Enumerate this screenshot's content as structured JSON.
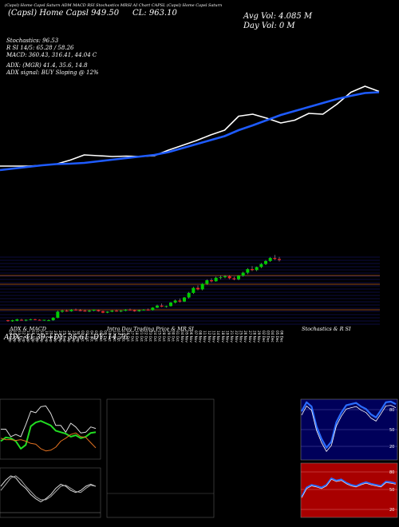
{
  "header": {
    "name": "(Capsl) Home Capsl Saturn ADM MACD RSI Stochastics MRSI AI Chart CAPSL (Capsl) Home Capsl Saturn",
    "price": "(Capsl) Home Capsl 949.50",
    "close": "CL: 963.10",
    "avg_volume": "Avg Vol: 4.085 M",
    "day_volume": "Day Vol: 0  M"
  },
  "indicators": {
    "stochastics": "Stochastics: 96.53",
    "rsi": "R         SI 14/5: 65.28  /  58.26",
    "macd": "MACD: 360.43,  316.41,  44.04  C",
    "adx": "ADX:                     (MGR) 41.4,  35.6,  14.8",
    "adx_signal": "ADX  signal:                        BUY Sloping @ 12%"
  },
  "panels": {
    "adx_title": "ADX  & MACD",
    "adx_values": "ADX: 41.39 +DY: 35.61 -DY: 14.76",
    "intraday_title": "Intra Day Trading Price  & MR                    SI",
    "stoch_title": "Stochastics & R                    SI"
  },
  "colors": {
    "price_line": "#ffffff",
    "moving_average": "#1e5bff",
    "candle_up": "#00cc00",
    "candle_down": "#ee2222",
    "grid": "#1a1a80",
    "sr_line": "#c06020",
    "rsi_panel_bg": "#a80000",
    "stoch_line": "#2a6cff"
  },
  "chart_data": [
    {
      "type": "line",
      "title": "",
      "series": [
        {
          "values": [
            20,
            20,
            20,
            22,
            25,
            35,
            48,
            46,
            44,
            45,
            44,
            46,
            60,
            72,
            84,
            98,
            110,
            145,
            150,
            140,
            128,
            135,
            152,
            150,
            175,
            205,
            220,
            207
          ]
        },
        {
          "values": [
            10,
            14,
            18,
            22,
            25,
            26,
            28,
            32,
            36,
            40,
            44,
            48,
            55,
            65,
            75,
            85,
            95,
            110,
            122,
            135,
            148,
            158,
            168,
            178,
            188,
            196,
            203,
            205
          ]
        }
      ]
    },
    {
      "type": "candlestick",
      "x": [
        "09 Sep",
        "10 Sep",
        "11 Sep",
        "12 Sep",
        "13 Sep",
        "16 Sep",
        "17 Sep",
        "18 Sep",
        "19 Sep",
        "20 Sep",
        "23 Sep",
        "24 Sep",
        "25 Sep",
        "26 Sep",
        "27 Sep",
        "30 Sep",
        "01 Oct",
        "03 Oct",
        "04 Oct",
        "07 Oct",
        "08 Oct",
        "09 Oct",
        "10 Oct",
        "11 Oct",
        "14 Oct",
        "15 Oct",
        "16 Oct",
        "17 Oct",
        "18 Oct",
        "21 Oct",
        "22 Oct",
        "23 Oct",
        "24 Oct",
        "25 Oct",
        "28 Oct",
        "29 Oct",
        "30 Oct",
        "31 Oct",
        "04 Nov",
        "05 Nov",
        "06 Nov",
        "07 Nov",
        "08 Nov",
        "11 Nov",
        "12 Nov",
        "13 Nov",
        "14 Nov",
        "18 Nov",
        "19 Nov",
        "21 Nov",
        "22 Nov",
        "25 Nov",
        "26 Nov",
        "27 Nov",
        "28 Nov",
        "29 Nov",
        "02 Dec",
        "03 Dec",
        "04 Dec",
        "05 Dec",
        "06 Dec"
      ],
      "values": [
        [
          409,
          410,
          406,
          408
        ],
        [
          407,
          410,
          406,
          409
        ],
        [
          408,
          412,
          407,
          411
        ],
        [
          410,
          412,
          408,
          409
        ],
        [
          409,
          411,
          407,
          410
        ],
        [
          410,
          412,
          409,
          411
        ],
        [
          411,
          412,
          409,
          410
        ],
        [
          410,
          411,
          409,
          409
        ],
        [
          409,
          410,
          408,
          410
        ],
        [
          409,
          411,
          408,
          409
        ],
        [
          409,
          415,
          408,
          414
        ],
        [
          414,
          428,
          413,
          426
        ],
        [
          426,
          430,
          424,
          428
        ],
        [
          428,
          430,
          426,
          427
        ],
        [
          427,
          431,
          426,
          430
        ],
        [
          430,
          432,
          428,
          429
        ],
        [
          429,
          431,
          427,
          428
        ],
        [
          428,
          430,
          426,
          427
        ],
        [
          427,
          430,
          425,
          428
        ],
        [
          428,
          430,
          427,
          430
        ],
        [
          429,
          430,
          426,
          427
        ],
        [
          427,
          428,
          423,
          424
        ],
        [
          424,
          427,
          423,
          426
        ],
        [
          426,
          429,
          425,
          428
        ],
        [
          428,
          430,
          426,
          427
        ],
        [
          427,
          429,
          425,
          428
        ],
        [
          428,
          431,
          427,
          430
        ],
        [
          430,
          432,
          428,
          429
        ],
        [
          429,
          430,
          426,
          427
        ],
        [
          427,
          430,
          426,
          429
        ],
        [
          429,
          431,
          428,
          430
        ],
        [
          430,
          432,
          428,
          429
        ],
        [
          429,
          435,
          428,
          434
        ],
        [
          434,
          440,
          433,
          438
        ],
        [
          438,
          442,
          435,
          436
        ],
        [
          436,
          438,
          434,
          437
        ],
        [
          437,
          445,
          436,
          444
        ],
        [
          444,
          450,
          442,
          448
        ],
        [
          448,
          452,
          444,
          446
        ],
        [
          446,
          455,
          445,
          454
        ],
        [
          454,
          465,
          452,
          463
        ],
        [
          463,
          475,
          461,
          473
        ],
        [
          473,
          478,
          468,
          470
        ],
        [
          470,
          482,
          468,
          481
        ],
        [
          481,
          490,
          479,
          488
        ],
        [
          488,
          492,
          484,
          486
        ],
        [
          486,
          495,
          485,
          493
        ],
        [
          493,
          497,
          490,
          494
        ],
        [
          494,
          498,
          492,
          496
        ],
        [
          496,
          498,
          490,
          492
        ],
        [
          492,
          495,
          488,
          490
        ],
        [
          490,
          498,
          488,
          497
        ],
        [
          497,
          505,
          495,
          503
        ],
        [
          503,
          512,
          500,
          510
        ],
        [
          510,
          516,
          506,
          508
        ],
        [
          508,
          515,
          506,
          514
        ],
        [
          514,
          522,
          512,
          520
        ],
        [
          520,
          528,
          518,
          526
        ],
        [
          526,
          534,
          524,
          532
        ],
        [
          532,
          538,
          528,
          530
        ],
        [
          530,
          534,
          525,
          528
        ]
      ],
      "ylim": [
        395,
        540
      ]
    },
    {
      "type": "line",
      "title": "ADX & MACD",
      "series": [
        {
          "name": "ADX",
          "values": [
            40,
            40,
            30,
            33,
            30,
            46,
            64,
            62,
            70,
            71,
            61,
            45,
            45,
            36,
            48,
            43,
            35,
            36,
            43,
            41
          ]
        },
        {
          "name": "+DY",
          "values": [
            24,
            29,
            28,
            24,
            14,
            19,
            44,
            49,
            51,
            48,
            45,
            38,
            36,
            34,
            30,
            32,
            28,
            30,
            35,
            36
          ]
        },
        {
          "name": "-DY",
          "values": [
            28,
            26,
            26,
            25,
            26,
            24,
            21,
            20,
            14,
            11,
            12,
            16,
            24,
            28,
            33,
            35,
            30,
            29,
            22,
            15
          ]
        }
      ],
      "ylim": [
        0,
        80
      ]
    },
    {
      "type": "line",
      "title": "Stochastics & RSI",
      "series": [
        {
          "name": "Stochastics",
          "values": [
            80,
            95,
            88,
            55,
            35,
            20,
            30,
            62,
            78,
            90,
            92,
            94,
            88,
            84,
            75,
            70,
            82,
            95,
            96,
            92
          ]
        },
        {
          "name": "MRSI",
          "values": [
            38,
            55,
            60,
            58,
            55,
            60,
            72,
            68,
            70,
            64,
            60,
            58,
            62,
            65,
            62,
            60,
            58,
            66,
            65,
            63
          ]
        }
      ],
      "ylim": [
        0,
        100
      ]
    }
  ]
}
